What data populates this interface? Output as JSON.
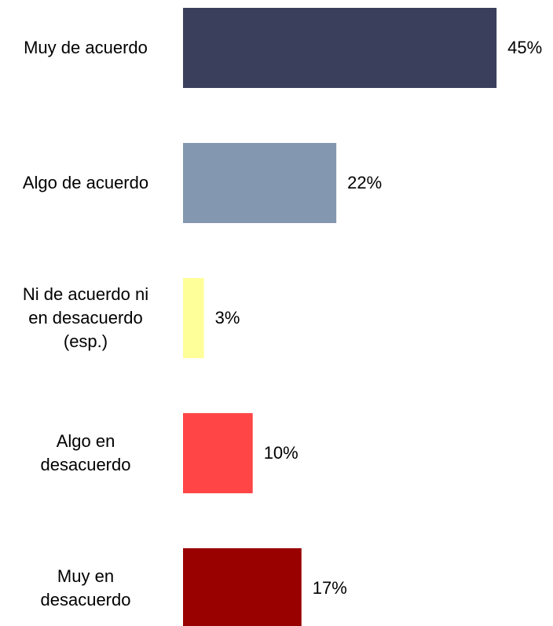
{
  "chart_data": {
    "type": "bar",
    "orientation": "horizontal",
    "categories": [
      "Muy de acuerdo",
      "Algo de acuerdo",
      "Ni de acuerdo ni\nen desacuerdo\n(esp.)",
      "Algo en\ndesacuerdo",
      "Muy en\ndesacuerdo"
    ],
    "values": [
      45,
      22,
      3,
      10,
      17
    ],
    "value_labels": [
      "45%",
      "22%",
      "3%",
      "10%",
      "17%"
    ],
    "colors": [
      "#3a3f5c",
      "#8497b0",
      "#ffff99",
      "#ff4545",
      "#990000"
    ]
  }
}
